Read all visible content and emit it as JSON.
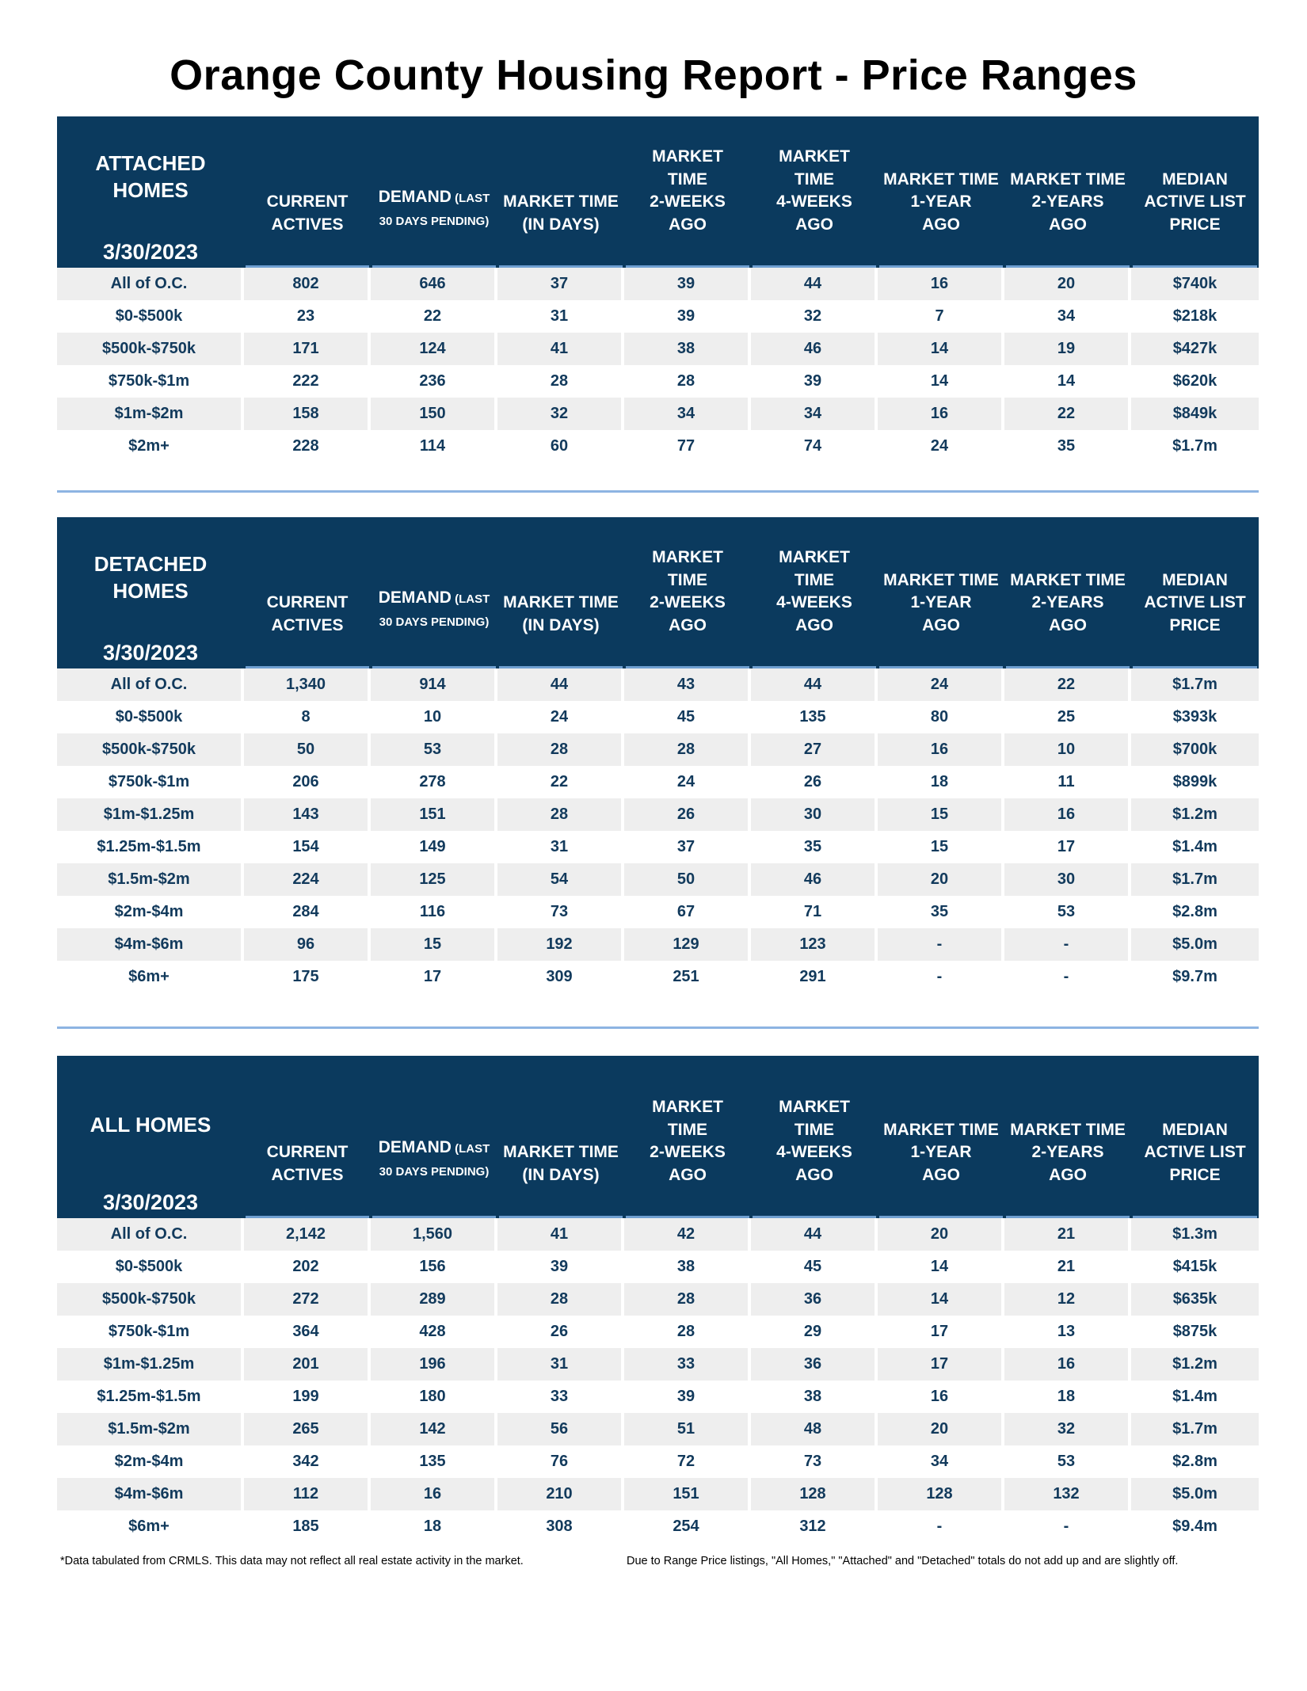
{
  "title": "Orange County Housing Report - Price Ranges",
  "headers": {
    "current": [
      "CURRENT",
      "ACTIVES"
    ],
    "demand_main": "DEMAND",
    "demand_small1": "(LAST",
    "demand_small2": "30 DAYS PENDING)",
    "mt": [
      "MARKET TIME",
      "(IN DAYS)"
    ],
    "mt2w": [
      "MARKET",
      "TIME",
      "2-WEEKS",
      "AGO"
    ],
    "mt4w": [
      "MARKET",
      "TIME",
      "4-WEEKS",
      "AGO"
    ],
    "mt1y": [
      "MARKET TIME",
      "1-YEAR",
      "AGO"
    ],
    "mt2y": [
      "MARKET TIME",
      "2-YEARS",
      "AGO"
    ],
    "median": [
      "MEDIAN",
      "ACTIVE LIST",
      "PRICE"
    ]
  },
  "sections": [
    {
      "label": [
        "ATTACHED",
        "HOMES"
      ],
      "date": "3/30/2023",
      "rows": [
        [
          "All of O.C.",
          "802",
          "646",
          "37",
          "39",
          "44",
          "16",
          "20",
          "$740k"
        ],
        [
          "$0-$500k",
          "23",
          "22",
          "31",
          "39",
          "32",
          "7",
          "34",
          "$218k"
        ],
        [
          "$500k-$750k",
          "171",
          "124",
          "41",
          "38",
          "46",
          "14",
          "19",
          "$427k"
        ],
        [
          "$750k-$1m",
          "222",
          "236",
          "28",
          "28",
          "39",
          "14",
          "14",
          "$620k"
        ],
        [
          "$1m-$2m",
          "158",
          "150",
          "32",
          "34",
          "34",
          "16",
          "22",
          "$849k"
        ],
        [
          "$2m+",
          "228",
          "114",
          "60",
          "77",
          "74",
          "24",
          "35",
          "$1.7m"
        ]
      ]
    },
    {
      "label": [
        "DETACHED",
        "HOMES"
      ],
      "date": "3/30/2023",
      "rows": [
        [
          "All of O.C.",
          "1,340",
          "914",
          "44",
          "43",
          "44",
          "24",
          "22",
          "$1.7m"
        ],
        [
          "$0-$500k",
          "8",
          "10",
          "24",
          "45",
          "135",
          "80",
          "25",
          "$393k"
        ],
        [
          "$500k-$750k",
          "50",
          "53",
          "28",
          "28",
          "27",
          "16",
          "10",
          "$700k"
        ],
        [
          "$750k-$1m",
          "206",
          "278",
          "22",
          "24",
          "26",
          "18",
          "11",
          "$899k"
        ],
        [
          "$1m-$1.25m",
          "143",
          "151",
          "28",
          "26",
          "30",
          "15",
          "16",
          "$1.2m"
        ],
        [
          "$1.25m-$1.5m",
          "154",
          "149",
          "31",
          "37",
          "35",
          "15",
          "17",
          "$1.4m"
        ],
        [
          "$1.5m-$2m",
          "224",
          "125",
          "54",
          "50",
          "46",
          "20",
          "30",
          "$1.7m"
        ],
        [
          "$2m-$4m",
          "284",
          "116",
          "73",
          "67",
          "71",
          "35",
          "53",
          "$2.8m"
        ],
        [
          "$4m-$6m",
          "96",
          "15",
          "192",
          "129",
          "123",
          "-",
          "-",
          "$5.0m"
        ],
        [
          "$6m+",
          "175",
          "17",
          "309",
          "251",
          "291",
          "-",
          "-",
          "$9.7m"
        ]
      ]
    },
    {
      "label": [
        "ALL HOMES"
      ],
      "date": "3/30/2023",
      "rows": [
        [
          "All of O.C.",
          "2,142",
          "1,560",
          "41",
          "42",
          "44",
          "20",
          "21",
          "$1.3m"
        ],
        [
          "$0-$500k",
          "202",
          "156",
          "39",
          "38",
          "45",
          "14",
          "21",
          "$415k"
        ],
        [
          "$500k-$750k",
          "272",
          "289",
          "28",
          "28",
          "36",
          "14",
          "12",
          "$635k"
        ],
        [
          "$750k-$1m",
          "364",
          "428",
          "26",
          "28",
          "29",
          "17",
          "13",
          "$875k"
        ],
        [
          "$1m-$1.25m",
          "201",
          "196",
          "31",
          "33",
          "36",
          "17",
          "16",
          "$1.2m"
        ],
        [
          "$1.25m-$1.5m",
          "199",
          "180",
          "33",
          "39",
          "38",
          "16",
          "18",
          "$1.4m"
        ],
        [
          "$1.5m-$2m",
          "265",
          "142",
          "56",
          "51",
          "48",
          "20",
          "32",
          "$1.7m"
        ],
        [
          "$2m-$4m",
          "342",
          "135",
          "76",
          "72",
          "73",
          "34",
          "53",
          "$2.8m"
        ],
        [
          "$4m-$6m",
          "112",
          "16",
          "210",
          "151",
          "128",
          "128",
          "132",
          "$5.0m"
        ],
        [
          "$6m+",
          "185",
          "18",
          "308",
          "254",
          "312",
          "-",
          "-",
          "$9.4m"
        ]
      ]
    }
  ],
  "footnote_left": "*Data tabulated  from CRMLS.  This data may not reflect all real estate activity in the market.",
  "footnote_right": "Due to Range Price listings, \"All Homes,\" \"Attached\" and \"Detached\" totals do not add up and are slightly off.",
  "colors": {
    "header_bg": "#0b3a5e",
    "row_shade": "#eeeeee",
    "text": "#123a5c",
    "divider": "#8db4e2"
  }
}
